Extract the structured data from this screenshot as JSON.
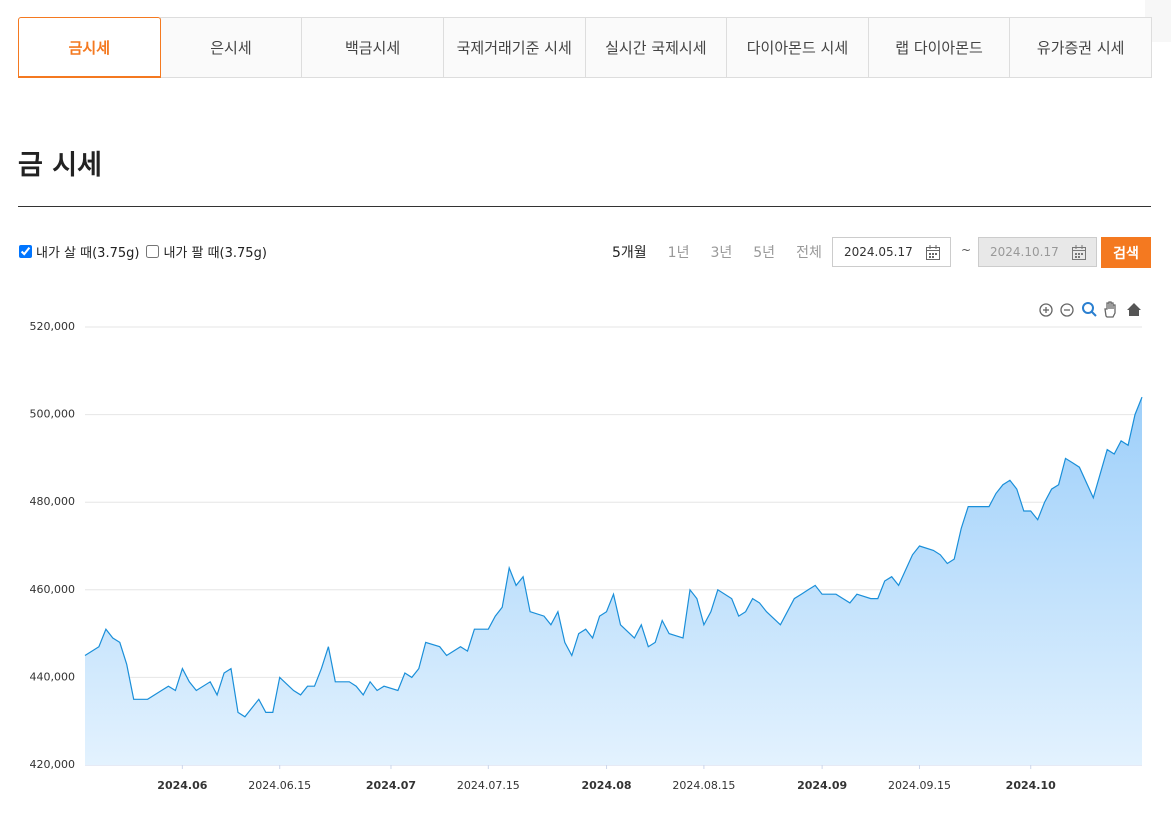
{
  "tabs": [
    {
      "label": "금시세",
      "active": true
    },
    {
      "label": "은시세",
      "active": false
    },
    {
      "label": "백금시세",
      "active": false
    },
    {
      "label": "국제거래기준 시세",
      "active": false
    },
    {
      "label": "실시간 국제시세",
      "active": false
    },
    {
      "label": "다이아몬드 시세",
      "active": false
    },
    {
      "label": "랩 다이아몬드",
      "active": false
    },
    {
      "label": "유가증권 시세",
      "active": false
    }
  ],
  "heading": "금 시세",
  "filters": {
    "checkboxes": [
      {
        "label": "내가 살 때(3.75g)",
        "checked": true
      },
      {
        "label": "내가 팔 때(3.75g)",
        "checked": false
      }
    ],
    "periods": [
      {
        "label": "5개월",
        "active": true
      },
      {
        "label": "1년",
        "active": false
      },
      {
        "label": "3년",
        "active": false
      },
      {
        "label": "5년",
        "active": false
      },
      {
        "label": "전체",
        "active": false
      }
    ],
    "start_date": "2024.05.17",
    "separator": "~",
    "end_date": "2024.10.17",
    "search": "검색"
  },
  "chart_data": {
    "type": "area",
    "color": "#1a8fd9",
    "grid": true,
    "x": [
      "2024-05-18",
      "2024-05-20",
      "2024-05-21",
      "2024-05-22",
      "2024-05-23",
      "2024-05-24",
      "2024-05-25",
      "2024-05-26",
      "2024-05-27",
      "2024-05-29",
      "2024-05-30",
      "2024-05-31",
      "2024-06-01",
      "2024-06-02",
      "2024-06-03",
      "2024-06-05",
      "2024-06-06",
      "2024-06-07",
      "2024-06-08",
      "2024-06-09",
      "2024-06-10",
      "2024-06-12",
      "2024-06-13",
      "2024-06-14",
      "2024-06-15",
      "2024-06-17",
      "2024-06-18",
      "2024-06-19",
      "2024-06-20",
      "2024-06-21",
      "2024-06-22",
      "2024-06-23",
      "2024-06-25",
      "2024-06-26",
      "2024-06-27",
      "2024-06-28",
      "2024-06-29",
      "2024-06-30",
      "2024-07-02",
      "2024-07-03",
      "2024-07-04",
      "2024-07-05",
      "2024-07-06",
      "2024-07-08",
      "2024-07-09",
      "2024-07-11",
      "2024-07-12",
      "2024-07-13",
      "2024-07-15",
      "2024-07-16",
      "2024-07-17",
      "2024-07-18",
      "2024-07-19",
      "2024-07-20",
      "2024-07-21",
      "2024-07-23",
      "2024-07-24",
      "2024-07-25",
      "2024-07-26",
      "2024-07-27",
      "2024-07-28",
      "2024-07-29",
      "2024-07-30",
      "2024-07-31",
      "2024-08-01",
      "2024-08-02",
      "2024-08-03",
      "2024-08-05",
      "2024-08-06",
      "2024-08-07",
      "2024-08-08",
      "2024-08-09",
      "2024-08-10",
      "2024-08-12",
      "2024-08-13",
      "2024-08-14",
      "2024-08-15",
      "2024-08-16",
      "2024-08-17",
      "2024-08-19",
      "2024-08-20",
      "2024-08-21",
      "2024-08-22",
      "2024-08-23",
      "2024-08-24",
      "2024-08-26",
      "2024-08-28",
      "2024-08-29",
      "2024-08-30",
      "2024-08-31",
      "2024-09-01",
      "2024-09-03",
      "2024-09-04",
      "2024-09-05",
      "2024-09-06",
      "2024-09-08",
      "2024-09-09",
      "2024-09-10",
      "2024-09-11",
      "2024-09-12",
      "2024-09-14",
      "2024-09-15",
      "2024-09-17",
      "2024-09-18",
      "2024-09-19",
      "2024-09-20",
      "2024-09-21",
      "2024-09-22",
      "2024-09-24",
      "2024-09-25",
      "2024-09-26",
      "2024-09-27",
      "2024-09-28",
      "2024-09-29",
      "2024-09-30",
      "2024-10-01",
      "2024-10-02",
      "2024-10-03",
      "2024-10-04",
      "2024-10-05",
      "2024-10-06",
      "2024-10-07",
      "2024-10-08",
      "2024-10-10",
      "2024-10-12",
      "2024-10-13",
      "2024-10-14",
      "2024-10-15",
      "2024-10-16",
      "2024-10-17"
    ],
    "values": [
      445000,
      447000,
      451000,
      449000,
      448000,
      443000,
      435000,
      435000,
      435000,
      437000,
      438000,
      437000,
      442000,
      439000,
      437000,
      439000,
      436000,
      441000,
      442000,
      432000,
      431000,
      435000,
      432000,
      432000,
      440000,
      437000,
      436000,
      438000,
      438000,
      442000,
      447000,
      439000,
      439000,
      438000,
      436000,
      439000,
      437000,
      438000,
      437000,
      441000,
      440000,
      442000,
      448000,
      447000,
      445000,
      447000,
      446000,
      451000,
      451000,
      454000,
      456000,
      465000,
      461000,
      463000,
      455000,
      454000,
      452000,
      455000,
      448000,
      445000,
      450000,
      451000,
      449000,
      454000,
      455000,
      459000,
      452000,
      449000,
      452000,
      447000,
      448000,
      453000,
      450000,
      449000,
      460000,
      458000,
      452000,
      455000,
      460000,
      458000,
      454000,
      455000,
      458000,
      457000,
      455000,
      452000,
      458000,
      459000,
      460000,
      461000,
      459000,
      459000,
      458000,
      457000,
      459000,
      458000,
      458000,
      462000,
      463000,
      461000,
      468000,
      470000,
      469000,
      468000,
      466000,
      467000,
      474000,
      479000,
      479000,
      479000,
      482000,
      484000,
      485000,
      483000,
      478000,
      478000,
      476000,
      480000,
      483000,
      484000,
      490000,
      489000,
      488000,
      481000,
      492000,
      491000,
      494000,
      493000,
      500000,
      504000
    ],
    "xlim": [
      "2024-05-18",
      "2024-10-17"
    ],
    "xticks": [
      {
        "value": "2024-06-01",
        "label": "2024.06"
      },
      {
        "value": "2024-06-15",
        "label": "2024.06.15"
      },
      {
        "value": "2024-07-01",
        "label": "2024.07"
      },
      {
        "value": "2024-07-15",
        "label": "2024.07.15"
      },
      {
        "value": "2024-08-01",
        "label": "2024.08"
      },
      {
        "value": "2024-08-15",
        "label": "2024.08.15"
      },
      {
        "value": "2024-09-01",
        "label": "2024.09"
      },
      {
        "value": "2024-09-15",
        "label": "2024.09.15"
      },
      {
        "value": "2024-10-01",
        "label": "2024.10"
      }
    ],
    "ylim": [
      420000,
      520000
    ],
    "yticks": [
      {
        "value": 420000,
        "label": "420,000"
      },
      {
        "value": 440000,
        "label": "440,000"
      },
      {
        "value": 460000,
        "label": "460,000"
      },
      {
        "value": 480000,
        "label": "480,000"
      },
      {
        "value": 500000,
        "label": "500,000"
      },
      {
        "value": 520000,
        "label": "520,000"
      }
    ]
  }
}
